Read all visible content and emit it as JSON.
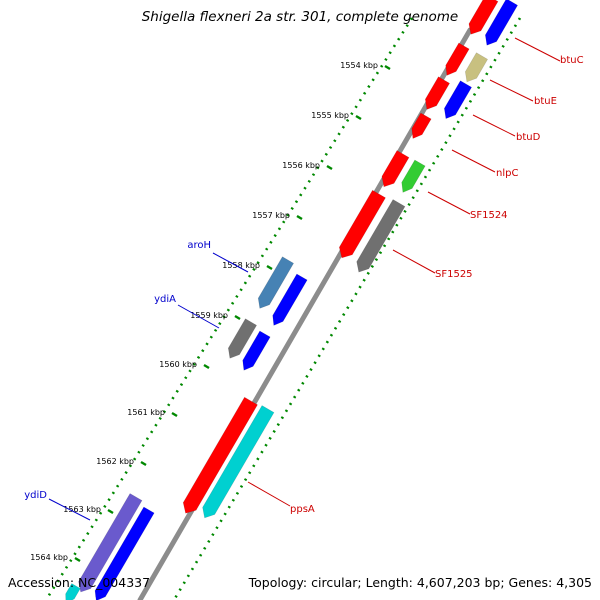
{
  "title": "Shigella flexneri 2a str. 301, complete genome",
  "footer": {
    "accession": "Accession: NC_004337",
    "summary": "Topology: circular; Length: 4,607,203 bp; Genes: 4,305"
  },
  "ticks": [
    {
      "label": "1554 kbp"
    },
    {
      "label": "1555 kbp"
    },
    {
      "label": "1556 kbp"
    },
    {
      "label": "1557 kbp"
    },
    {
      "label": "1558 kbp"
    },
    {
      "label": "1559 kbp"
    },
    {
      "label": "1560 kbp"
    },
    {
      "label": "1561 kbp"
    },
    {
      "label": "1562 kbp"
    },
    {
      "label": "1563 kbp"
    },
    {
      "label": "1564 kbp"
    }
  ],
  "gene_labels": [
    {
      "name": "btuC",
      "color": "#cc0000"
    },
    {
      "name": "btuE",
      "color": "#cc0000"
    },
    {
      "name": "btuD",
      "color": "#cc0000"
    },
    {
      "name": "nlpC",
      "color": "#cc0000"
    },
    {
      "name": "SF1524",
      "color": "#cc0000"
    },
    {
      "name": "SF1525",
      "color": "#cc0000"
    },
    {
      "name": "ppsA",
      "color": "#cc0000"
    },
    {
      "name": "aroH",
      "color": "#0000cc"
    },
    {
      "name": "ydiA",
      "color": "#0000cc"
    },
    {
      "name": "ydiD",
      "color": "#0000cc"
    }
  ],
  "colors": {
    "backbone": "#8c8c8c",
    "tick_dots": "#008800",
    "cds_red": "#ff0000",
    "cds_blue": "#0000ff",
    "cds_cyan": "#00d0d0",
    "cds_green": "#33cc33",
    "cds_khaki": "#c8c080",
    "cds_gray": "#707070",
    "cds_steel": "#4682b4",
    "cds_slate": "#6a5acd",
    "cds_navy": "#000080"
  }
}
